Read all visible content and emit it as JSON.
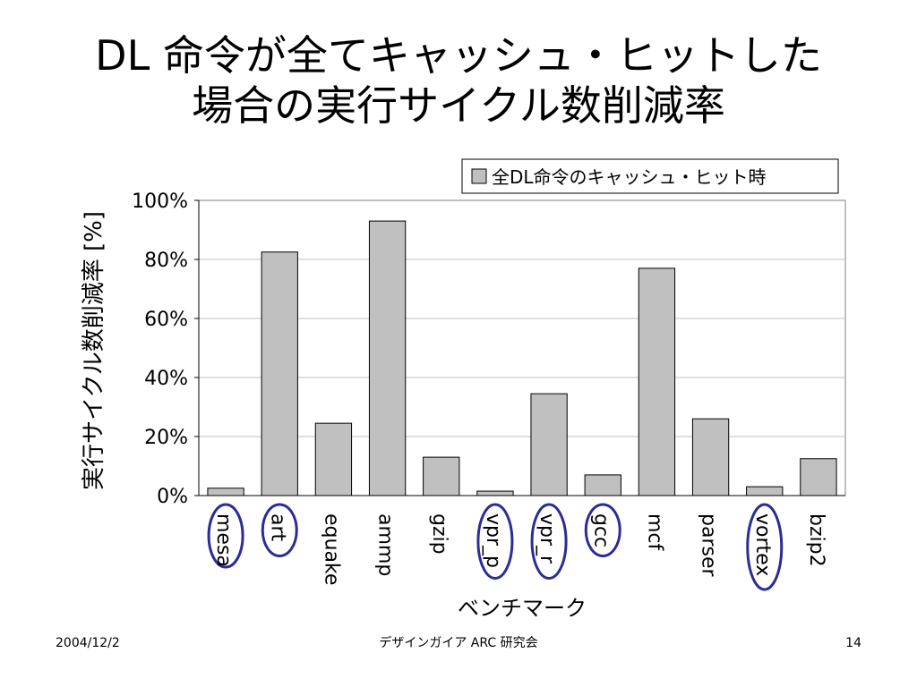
{
  "title": {
    "line1": "DL 命令が全てキャッシュ・ヒットした",
    "line2": "場合の実行サイクル数削減率"
  },
  "chart_data": {
    "type": "bar",
    "categories": [
      "mesa",
      "art",
      "equake",
      "ammp",
      "gzip",
      "vpr_p",
      "vpr_r",
      "gcc",
      "mcf",
      "parser",
      "vortex",
      "bzip2"
    ],
    "series": [
      {
        "name": "全DL命令のキャッシュ・ヒット時",
        "values": [
          2.5,
          82.5,
          24.5,
          93,
          13,
          1.5,
          34.5,
          7,
          77,
          26,
          3,
          12.5
        ]
      }
    ],
    "xlabel": "ベンチマーク",
    "ylabel": "実行サイクル数削減率 [%]",
    "ylim": [
      0,
      100
    ],
    "yticks": [
      "0%",
      "20%",
      "40%",
      "60%",
      "80%",
      "100%"
    ],
    "grid": true,
    "legend_position": "top-right",
    "highlighted_categories": [
      "mesa",
      "art",
      "vpr_p",
      "vpr_r",
      "gcc",
      "vortex"
    ],
    "colors": {
      "bar_fill": "#c0c0c0",
      "bar_stroke": "#000000",
      "grid": "#c0c0c0",
      "highlight_ring": "#2c2c94"
    }
  },
  "footer": {
    "date": "2004/12/2",
    "center": "デザインガイア ARC 研究会",
    "page": "14"
  }
}
